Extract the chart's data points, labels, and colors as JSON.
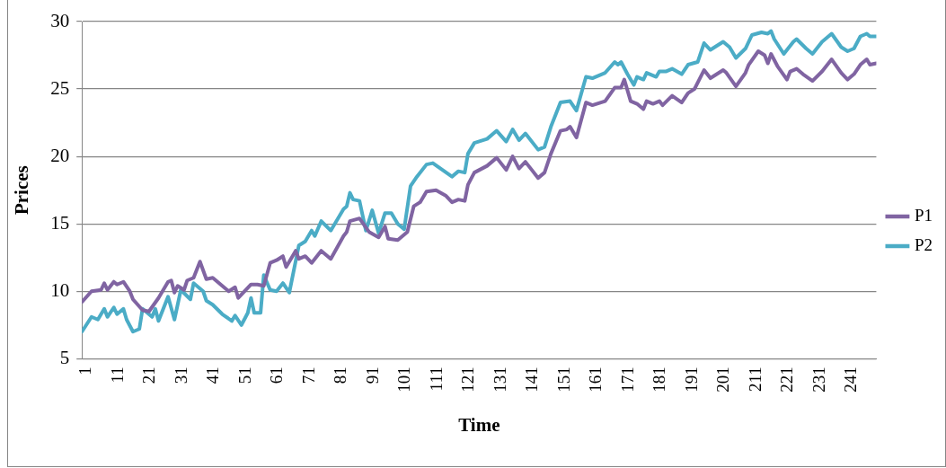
{
  "chart_data": {
    "type": "line",
    "xlabel": "Time",
    "ylabel": "Prices",
    "xlim": [
      1,
      250
    ],
    "xticks": [
      1,
      11,
      21,
      31,
      41,
      51,
      61,
      71,
      81,
      91,
      101,
      111,
      121,
      131,
      141,
      151,
      161,
      171,
      181,
      191,
      201,
      211,
      221,
      231,
      241
    ],
    "ylim": [
      5,
      30
    ],
    "yticks": [
      5,
      10,
      15,
      20,
      25,
      30
    ],
    "grid": "y",
    "legend": "right",
    "marker": "none",
    "line_style": "solid",
    "series": [
      {
        "name": "P1",
        "color": "#8064a2",
        "x": [
          1,
          4,
          7,
          8,
          9,
          11,
          12,
          14,
          16,
          17,
          20,
          22,
          25,
          28,
          29,
          30,
          31,
          33,
          34,
          36,
          38,
          40,
          42,
          45,
          47,
          49,
          50,
          52,
          54,
          56,
          58,
          60,
          62,
          64,
          65,
          68,
          69,
          71,
          73,
          76,
          79,
          83,
          84,
          85,
          88,
          91,
          94,
          96,
          97,
          100,
          103,
          105,
          107,
          109,
          112,
          115,
          117,
          119,
          121,
          122,
          124,
          128,
          131,
          134,
          136,
          138,
          140,
          142,
          144,
          146,
          148,
          151,
          153,
          154,
          156,
          159,
          161,
          165,
          168,
          170,
          171,
          173,
          175,
          177,
          178,
          180,
          182,
          183,
          186,
          189,
          191,
          193,
          196,
          198,
          202,
          203,
          206,
          209,
          210,
          213,
          215,
          216,
          217,
          219,
          222,
          223,
          225,
          227,
          230,
          233,
          236,
          239,
          241,
          243,
          245,
          247,
          248,
          250
        ],
        "values": [
          9.2,
          10.0,
          10.1,
          10.6,
          10.1,
          10.7,
          10.5,
          10.7,
          10.0,
          9.4,
          8.6,
          8.5,
          9.5,
          10.7,
          10.8,
          9.9,
          10.4,
          10.1,
          10.8,
          11.0,
          12.2,
          10.9,
          11.0,
          10.4,
          10.0,
          10.3,
          9.5,
          10.0,
          10.5,
          10.5,
          10.4,
          12.1,
          12.3,
          12.6,
          11.8,
          13.0,
          12.4,
          12.6,
          12.1,
          13.0,
          12.4,
          14.1,
          14.4,
          15.2,
          15.4,
          14.4,
          14.0,
          14.8,
          13.9,
          13.8,
          14.4,
          16.3,
          16.6,
          17.4,
          17.5,
          17.1,
          16.6,
          16.8,
          16.7,
          17.9,
          18.8,
          19.3,
          19.9,
          19.0,
          20.0,
          19.1,
          19.6,
          19.0,
          18.4,
          18.8,
          20.2,
          21.9,
          22.0,
          22.2,
          21.4,
          24.0,
          23.8,
          24.1,
          25.1,
          25.1,
          25.7,
          24.1,
          23.9,
          23.5,
          24.1,
          23.9,
          24.1,
          23.8,
          24.5,
          24.0,
          24.7,
          25.0,
          26.4,
          25.8,
          26.4,
          26.2,
          25.2,
          26.2,
          26.8,
          27.8,
          27.5,
          26.9,
          27.6,
          26.7,
          25.7,
          26.3,
          26.5,
          26.1,
          25.6,
          26.3,
          27.2,
          26.2,
          25.7,
          26.1,
          26.8,
          27.2,
          26.8,
          26.9
        ]
      },
      {
        "name": "P2",
        "color": "#4bacc6",
        "x": [
          1,
          4,
          6,
          8,
          9,
          11,
          12,
          14,
          15,
          17,
          19,
          20,
          23,
          24,
          25,
          28,
          30,
          32,
          35,
          36,
          39,
          40,
          42,
          45,
          48,
          49,
          51,
          53,
          54,
          55,
          57,
          58,
          60,
          62,
          64,
          66,
          69,
          71,
          73,
          74,
          76,
          79,
          83,
          84,
          85,
          86,
          88,
          90,
          92,
          94,
          96,
          98,
          100,
          102,
          104,
          106,
          109,
          111,
          114,
          117,
          119,
          121,
          122,
          124,
          128,
          131,
          134,
          136,
          138,
          140,
          144,
          146,
          148,
          151,
          154,
          156,
          159,
          161,
          165,
          168,
          169,
          170,
          172,
          174,
          175,
          177,
          178,
          181,
          182,
          184,
          186,
          189,
          191,
          194,
          196,
          198,
          202,
          204,
          206,
          209,
          211,
          214,
          216,
          217,
          218,
          221,
          224,
          225,
          228,
          230,
          233,
          236,
          239,
          241,
          243,
          245,
          247,
          248,
          250
        ],
        "values": [
          7.0,
          8.1,
          7.9,
          8.7,
          8.1,
          8.8,
          8.3,
          8.7,
          7.9,
          7.0,
          7.2,
          8.7,
          8.1,
          8.7,
          7.8,
          9.6,
          7.9,
          10.1,
          9.4,
          10.6,
          10.0,
          9.3,
          9.0,
          8.3,
          7.8,
          8.2,
          7.5,
          8.4,
          9.5,
          8.4,
          8.4,
          11.2,
          10.1,
          10.0,
          10.6,
          9.9,
          13.4,
          13.7,
          14.5,
          14.1,
          15.2,
          14.5,
          16.1,
          16.3,
          17.3,
          16.8,
          16.7,
          14.5,
          16.0,
          14.3,
          15.8,
          15.8,
          15.0,
          14.6,
          17.8,
          18.5,
          19.4,
          19.5,
          19.0,
          18.5,
          18.9,
          18.8,
          20.2,
          21.0,
          21.3,
          21.9,
          21.1,
          22.0,
          21.2,
          21.7,
          20.5,
          20.7,
          22.2,
          24.0,
          24.1,
          23.4,
          25.9,
          25.8,
          26.2,
          27.0,
          26.8,
          27.0,
          26.1,
          25.3,
          25.9,
          25.7,
          26.2,
          25.9,
          26.3,
          26.3,
          26.5,
          26.1,
          26.8,
          27.0,
          28.4,
          27.9,
          28.5,
          28.1,
          27.3,
          28.0,
          29.0,
          29.2,
          29.1,
          29.3,
          28.7,
          27.6,
          28.5,
          28.7,
          28.0,
          27.6,
          28.5,
          29.1,
          28.1,
          27.8,
          28.0,
          28.9,
          29.1,
          28.9,
          28.9
        ]
      }
    ]
  }
}
